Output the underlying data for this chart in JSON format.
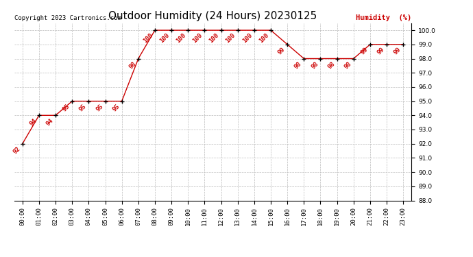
{
  "title": "Outdoor Humidity (24 Hours) 20230125",
  "copyright": "Copyright 2023 Cartronics.com",
  "legend_label": "Humidity  (%)",
  "hours": [
    0,
    1,
    2,
    3,
    4,
    5,
    6,
    7,
    8,
    9,
    10,
    11,
    12,
    13,
    14,
    15,
    16,
    17,
    18,
    19,
    20,
    21,
    22,
    23
  ],
  "hour_labels": [
    "00:00",
    "01:00",
    "02:00",
    "03:00",
    "04:00",
    "05:00",
    "06:00",
    "07:00",
    "08:00",
    "09:00",
    "10:00",
    "11:00",
    "12:00",
    "13:00",
    "14:00",
    "15:00",
    "16:00",
    "17:00",
    "18:00",
    "19:00",
    "20:00",
    "21:00",
    "22:00",
    "23:00"
  ],
  "values": [
    92,
    94,
    94,
    95,
    95,
    95,
    95,
    98,
    100,
    100,
    100,
    100,
    100,
    100,
    100,
    100,
    99,
    98,
    98,
    98,
    98,
    99,
    99,
    99
  ],
  "ylim": [
    88.0,
    100.5
  ],
  "yticks": [
    88.0,
    89.0,
    90.0,
    91.0,
    92.0,
    93.0,
    94.0,
    95.0,
    96.0,
    97.0,
    98.0,
    99.0,
    100.0
  ],
  "line_color": "#cc0000",
  "marker_color": "#000000",
  "label_color": "#cc0000",
  "title_color": "#000000",
  "copyright_color": "#000000",
  "legend_color": "#cc0000",
  "bg_color": "#ffffff",
  "grid_color": "#bbbbbb",
  "title_fontsize": 11,
  "label_fontsize": 6.5,
  "tick_fontsize": 6.5,
  "copyright_fontsize": 6.5,
  "legend_fontsize": 7.5
}
